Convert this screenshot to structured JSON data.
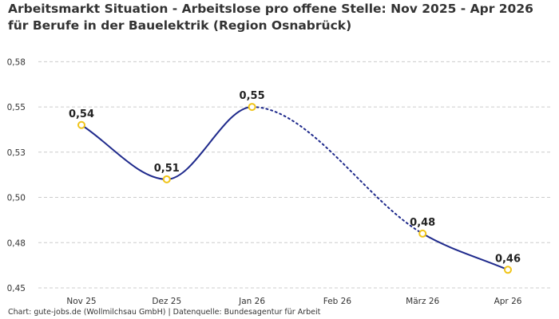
{
  "title": "Arbeitsmarkt Situation - Arbeitslose pro offene Stelle: Nov 2025 - Apr 2026 für Berufe in der Bauelektrik (Region Osnabrück)",
  "footer": "Chart: gute-jobs.de (Wollmilchsau GmbH) | Datenquelle: Bundesagentur für Arbeit",
  "chart_data": {
    "type": "line",
    "title": "Arbeitsmarkt Situation - Arbeitslose pro offene Stelle: Nov 2025 - Apr 2026 für Berufe in der Bauelektrik (Region Osnabrück)",
    "xlabel": "",
    "ylabel": "",
    "categories": [
      "Nov 25",
      "Dez 25",
      "Jan 26",
      "Feb 26",
      "März 26",
      "Apr 26"
    ],
    "values": [
      0.54,
      0.51,
      0.55,
      null,
      0.48,
      0.46
    ],
    "point_labels": [
      "0,54",
      "0,51",
      "0,55",
      "",
      "0,48",
      "0,46"
    ],
    "missing_segment": "dotted line interpolates between Jan 26 and März 26 (no value for Feb 26)",
    "ylim": [
      0.45,
      0.58
    ],
    "yticks": [
      0.45,
      0.475,
      0.5,
      0.525,
      0.55,
      0.575
    ],
    "ytick_labels": [
      "0,45",
      "0,48",
      "0,50",
      "0,53",
      "0,55",
      "0,58"
    ],
    "grid": "horizontal dashed",
    "legend": "none",
    "colors": {
      "line": "#1f2a8c",
      "marker_stroke": "#f0c419",
      "marker_fill": "#ffffff",
      "grid": "#cccccc"
    }
  }
}
